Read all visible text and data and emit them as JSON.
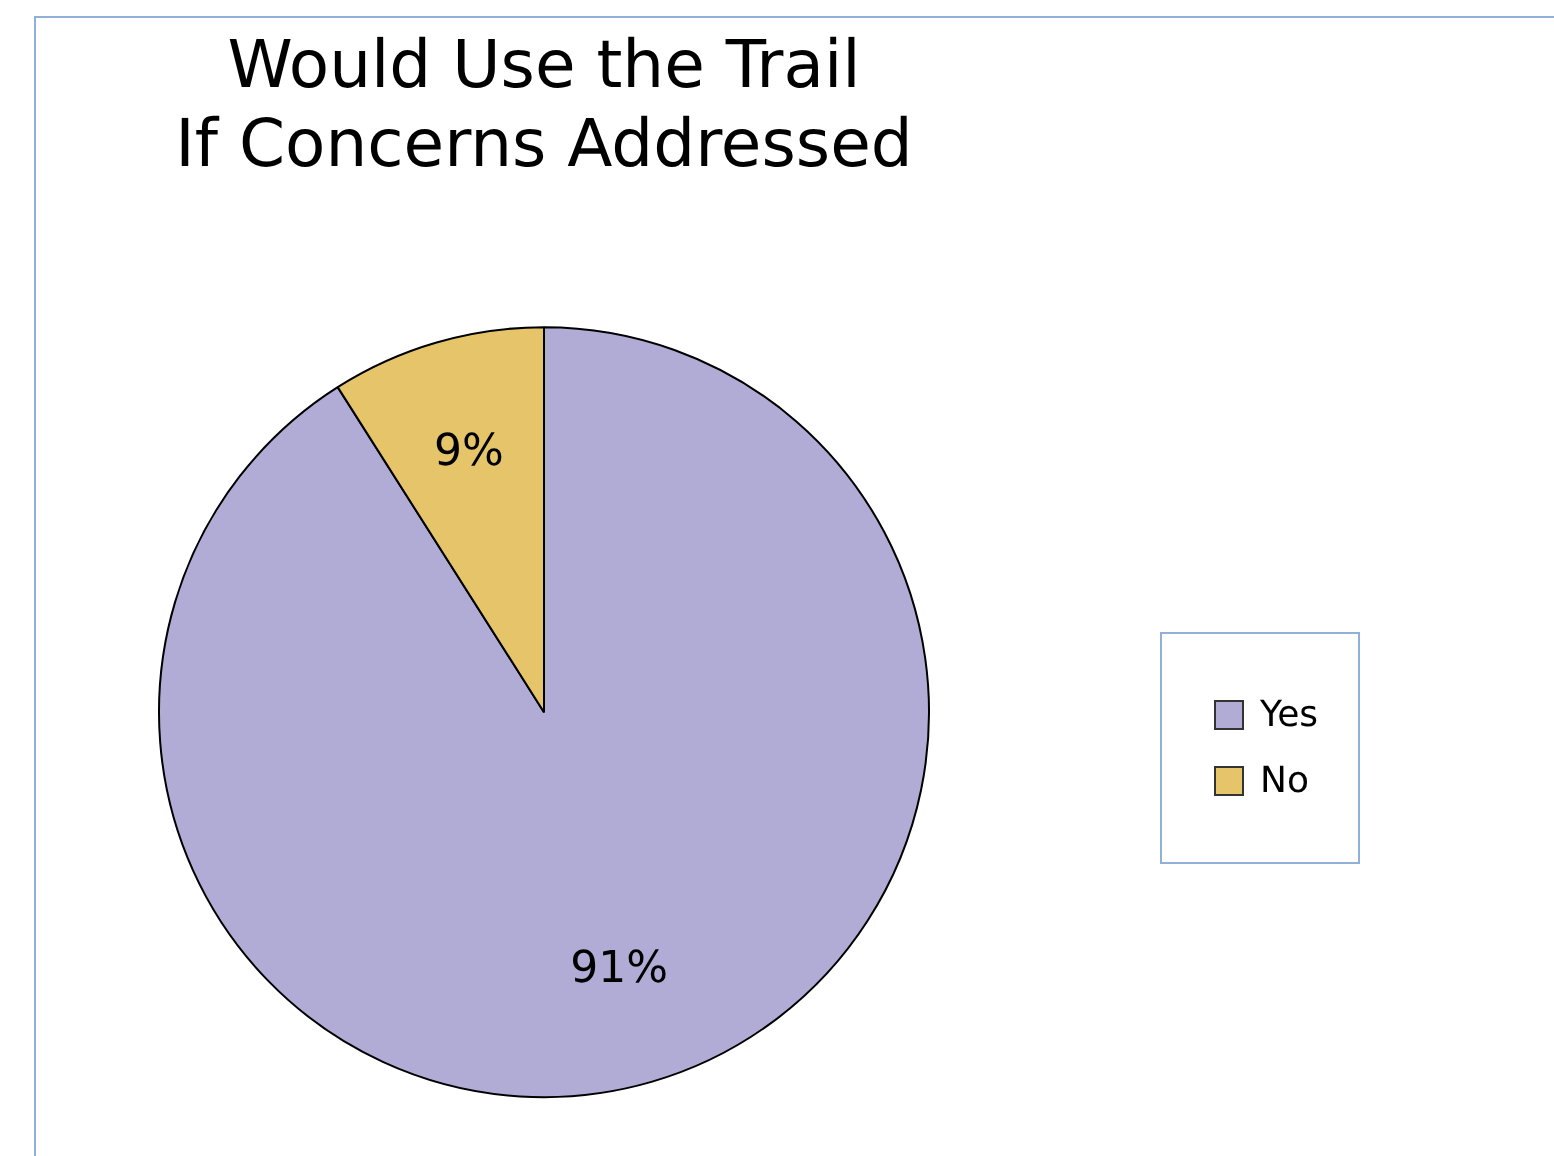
{
  "chart_data": {
    "type": "pie",
    "title": "Would Use the Trail\nIf Concerns Addressed",
    "categories": [
      "Yes",
      "No"
    ],
    "values": [
      91,
      9
    ],
    "colors": [
      "#b1acd6",
      "#e6c46a"
    ],
    "value_labels": [
      "91%",
      "9%"
    ],
    "legend": "right"
  }
}
